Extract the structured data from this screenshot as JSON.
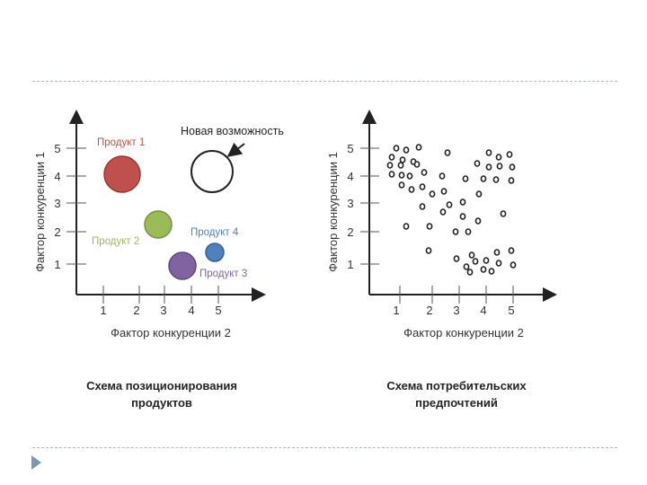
{
  "left_chart": {
    "y_label": "Фактор конкуренции 1",
    "x_label": "Фактор конкуренции 2",
    "y_ticks": [
      "5",
      "4",
      "3",
      "2",
      "1"
    ],
    "x_ticks": [
      "1",
      "2",
      "3",
      "4",
      "5"
    ],
    "caption": [
      "Схема позиционирования",
      "продуктов"
    ],
    "annotations": {
      "product1": "Продукт 1",
      "product2": "Продукт 2",
      "product3": "Продукт 3",
      "product4": "Продукт 4",
      "new_opportunity": "Новая возможность"
    },
    "colors": {
      "product1": "#c0504d",
      "product2": "#9bbb59",
      "product3": "#8064a2",
      "product4": "#4f81bd"
    }
  },
  "right_chart": {
    "y_label": "Фактор конкуренции 1",
    "x_label": "Фактор конкуренции 2",
    "y_ticks": [
      "5",
      "4",
      "3",
      "2",
      "1"
    ],
    "x_ticks": [
      "1",
      "2",
      "3",
      "4",
      "5"
    ],
    "caption": [
      "Схема потребительских",
      "предпочтений"
    ]
  }
}
